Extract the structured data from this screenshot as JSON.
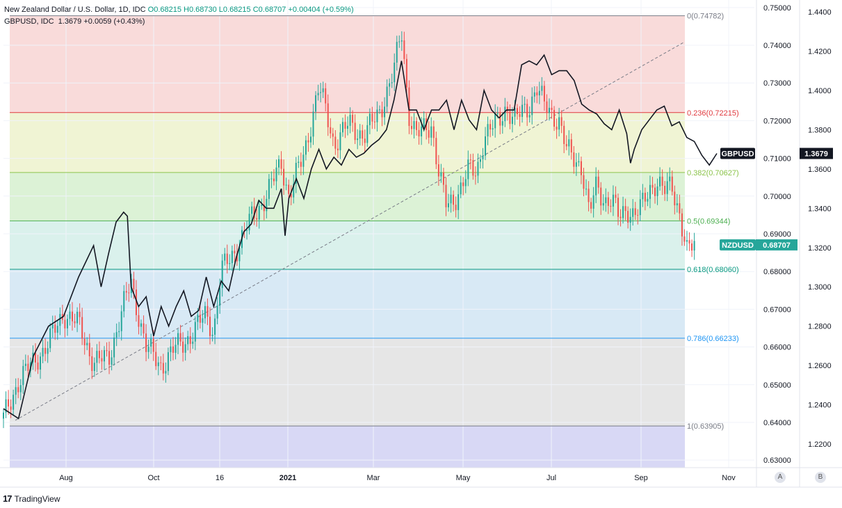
{
  "header": {
    "symbol_desc": "New Zealand Dollar / U.S. Dollar, 1D, IDC",
    "ohlc": [
      {
        "k": "O",
        "v": "0.68215"
      },
      {
        "k": "H",
        "v": "0.68730"
      },
      {
        "k": "L",
        "v": "0.68215"
      },
      {
        "k": "C",
        "v": "0.68707"
      }
    ],
    "change": "+0.00404 (+0.59%)",
    "compare_desc": "GBPUSD, IDC",
    "compare_value": "1.3679",
    "compare_change": "+0.0059 (+0.43%)"
  },
  "brand": {
    "logo": "17",
    "name": "TradingView"
  },
  "scale_buttons": [
    "A",
    "B"
  ],
  "colors": {
    "up": "#26a69a",
    "down": "#ef5350",
    "compare": "#131722",
    "nzd_label": "#26a69a"
  },
  "chart_data": {
    "type": "candlestick",
    "title": "New Zealand Dollar / U.S. Dollar, 1D, IDC",
    "x_ticks": [
      "Aug",
      "Oct",
      "16",
      "2021",
      "Mar",
      "May",
      "Jul",
      "Sep",
      "Nov"
    ],
    "y_left": {
      "ticks": [
        "0.75000",
        "0.74000",
        "0.73000",
        "0.72000",
        "0.71000",
        "0.70000",
        "0.69000",
        "0.68000",
        "0.67000",
        "0.66000",
        "0.65000",
        "0.64000",
        "0.63000"
      ],
      "range": [
        0.628,
        0.752
      ]
    },
    "y_right": {
      "ticks": [
        "1.4400",
        "1.4200",
        "1.4000",
        "1.3800",
        "1.3600",
        "1.3400",
        "1.3200",
        "1.3000",
        "1.2800",
        "1.2600",
        "1.2400",
        "1.2200"
      ],
      "range": [
        1.208,
        1.446
      ]
    },
    "fibonacci": [
      {
        "label": "0(0.74782)",
        "value": 0.74782,
        "color": "#787b86",
        "fill": "#f8d7d6"
      },
      {
        "label": "0.236(0.72215)",
        "value": 0.72215,
        "color": "#e0393e",
        "fill": "#eef3cf"
      },
      {
        "label": "0.382(0.70627)",
        "value": 0.70627,
        "color": "#8bc34a",
        "fill": "#d8f1d2"
      },
      {
        "label": "0.5(0.69344)",
        "value": 0.69344,
        "color": "#4caf50",
        "fill": "#d6f0ea"
      },
      {
        "label": "0.618(0.68060)",
        "value": 0.6806,
        "color": "#089981",
        "fill": "#d4e7f4"
      },
      {
        "label": "0.786(0.66233)",
        "value": 0.66233,
        "color": "#2196f3",
        "fill": "#e3e3e3"
      },
      {
        "label": "1(0.63905)",
        "value": 0.63905,
        "color": "#787b86",
        "fill": "#d4d4f4"
      }
    ],
    "series": [
      {
        "name": "NZDUSD",
        "last": "0.68707",
        "anchors": [
          [
            0.0,
            0.641
          ],
          [
            0.02,
            0.651
          ],
          [
            0.04,
            0.656
          ],
          [
            0.06,
            0.661
          ],
          [
            0.08,
            0.669
          ],
          [
            0.1,
            0.666
          ],
          [
            0.12,
            0.656
          ],
          [
            0.14,
            0.657
          ],
          [
            0.16,
            0.671
          ],
          [
            0.17,
            0.677
          ],
          [
            0.19,
            0.66
          ],
          [
            0.21,
            0.655
          ],
          [
            0.23,
            0.66
          ],
          [
            0.25,
            0.663
          ],
          [
            0.27,
            0.669
          ],
          [
            0.28,
            0.664
          ],
          [
            0.29,
            0.68
          ],
          [
            0.31,
            0.686
          ],
          [
            0.33,
            0.694
          ],
          [
            0.35,
            0.7
          ],
          [
            0.37,
            0.709
          ],
          [
            0.38,
            0.7
          ],
          [
            0.4,
            0.711
          ],
          [
            0.41,
            0.72
          ],
          [
            0.42,
            0.729
          ],
          [
            0.43,
            0.722
          ],
          [
            0.44,
            0.714
          ],
          [
            0.46,
            0.719
          ],
          [
            0.48,
            0.716
          ],
          [
            0.5,
            0.722
          ],
          [
            0.52,
            0.733
          ],
          [
            0.53,
            0.744
          ],
          [
            0.54,
            0.722
          ],
          [
            0.55,
            0.716
          ],
          [
            0.57,
            0.719
          ],
          [
            0.58,
            0.706
          ],
          [
            0.59,
            0.697
          ],
          [
            0.6,
            0.699
          ],
          [
            0.62,
            0.707
          ],
          [
            0.63,
            0.706
          ],
          [
            0.64,
            0.716
          ],
          [
            0.66,
            0.72
          ],
          [
            0.67,
            0.724
          ],
          [
            0.68,
            0.72
          ],
          [
            0.7,
            0.724
          ],
          [
            0.71,
            0.729
          ],
          [
            0.72,
            0.724
          ],
          [
            0.74,
            0.72
          ],
          [
            0.75,
            0.712
          ],
          [
            0.77,
            0.708
          ],
          [
            0.78,
            0.695
          ],
          [
            0.79,
            0.703
          ],
          [
            0.8,
            0.699
          ],
          [
            0.81,
            0.699
          ],
          [
            0.82,
            0.694
          ],
          [
            0.83,
            0.697
          ],
          [
            0.84,
            0.695
          ],
          [
            0.85,
            0.697
          ],
          [
            0.86,
            0.702
          ],
          [
            0.87,
            0.704
          ],
          [
            0.88,
            0.701
          ],
          [
            0.89,
            0.703
          ],
          [
            0.9,
            0.696
          ],
          [
            0.91,
            0.685
          ],
          [
            0.92,
            0.687
          ]
        ]
      },
      {
        "name": "GBPUSD",
        "last": "1.3679",
        "anchors": [
          [
            0.0,
            1.238
          ],
          [
            0.02,
            1.233
          ],
          [
            0.04,
            1.265
          ],
          [
            0.06,
            1.28
          ],
          [
            0.08,
            1.285
          ],
          [
            0.1,
            1.305
          ],
          [
            0.11,
            1.313
          ],
          [
            0.12,
            1.321
          ],
          [
            0.13,
            1.3
          ],
          [
            0.14,
            1.317
          ],
          [
            0.15,
            1.333
          ],
          [
            0.16,
            1.338
          ],
          [
            0.165,
            1.336
          ],
          [
            0.17,
            1.3
          ],
          [
            0.18,
            1.29
          ],
          [
            0.19,
            1.295
          ],
          [
            0.2,
            1.275
          ],
          [
            0.21,
            1.29
          ],
          [
            0.22,
            1.28
          ],
          [
            0.23,
            1.29
          ],
          [
            0.24,
            1.298
          ],
          [
            0.25,
            1.285
          ],
          [
            0.26,
            1.288
          ],
          [
            0.27,
            1.305
          ],
          [
            0.28,
            1.29
          ],
          [
            0.29,
            1.303
          ],
          [
            0.3,
            1.298
          ],
          [
            0.31,
            1.315
          ],
          [
            0.32,
            1.328
          ],
          [
            0.33,
            1.332
          ],
          [
            0.34,
            1.344
          ],
          [
            0.35,
            1.34
          ],
          [
            0.36,
            1.34
          ],
          [
            0.37,
            1.35
          ],
          [
            0.375,
            1.326
          ],
          [
            0.38,
            1.345
          ],
          [
            0.39,
            1.355
          ],
          [
            0.4,
            1.345
          ],
          [
            0.41,
            1.36
          ],
          [
            0.42,
            1.37
          ],
          [
            0.43,
            1.36
          ],
          [
            0.44,
            1.366
          ],
          [
            0.45,
            1.362
          ],
          [
            0.46,
            1.37
          ],
          [
            0.47,
            1.366
          ],
          [
            0.48,
            1.368
          ],
          [
            0.49,
            1.372
          ],
          [
            0.5,
            1.375
          ],
          [
            0.51,
            1.38
          ],
          [
            0.52,
            1.395
          ],
          [
            0.53,
            1.415
          ],
          [
            0.54,
            1.39
          ],
          [
            0.55,
            1.39
          ],
          [
            0.56,
            1.38
          ],
          [
            0.57,
            1.39
          ],
          [
            0.58,
            1.39
          ],
          [
            0.59,
            1.395
          ],
          [
            0.6,
            1.38
          ],
          [
            0.61,
            1.395
          ],
          [
            0.62,
            1.385
          ],
          [
            0.63,
            1.38
          ],
          [
            0.64,
            1.4
          ],
          [
            0.65,
            1.39
          ],
          [
            0.66,
            1.386
          ],
          [
            0.67,
            1.39
          ],
          [
            0.68,
            1.39
          ],
          [
            0.69,
            1.413
          ],
          [
            0.7,
            1.415
          ],
          [
            0.71,
            1.413
          ],
          [
            0.72,
            1.418
          ],
          [
            0.73,
            1.408
          ],
          [
            0.74,
            1.41
          ],
          [
            0.75,
            1.41
          ],
          [
            0.76,
            1.405
          ],
          [
            0.77,
            1.393
          ],
          [
            0.78,
            1.39
          ],
          [
            0.79,
            1.388
          ],
          [
            0.8,
            1.383
          ],
          [
            0.81,
            1.38
          ],
          [
            0.82,
            1.39
          ],
          [
            0.83,
            1.378
          ],
          [
            0.835,
            1.363
          ],
          [
            0.84,
            1.37
          ],
          [
            0.85,
            1.38
          ],
          [
            0.86,
            1.385
          ],
          [
            0.87,
            1.39
          ],
          [
            0.88,
            1.392
          ],
          [
            0.89,
            1.382
          ],
          [
            0.9,
            1.384
          ],
          [
            0.91,
            1.376
          ],
          [
            0.92,
            1.374
          ],
          [
            0.93,
            1.367
          ],
          [
            0.94,
            1.362
          ],
          [
            0.95,
            1.3679
          ]
        ]
      }
    ]
  }
}
